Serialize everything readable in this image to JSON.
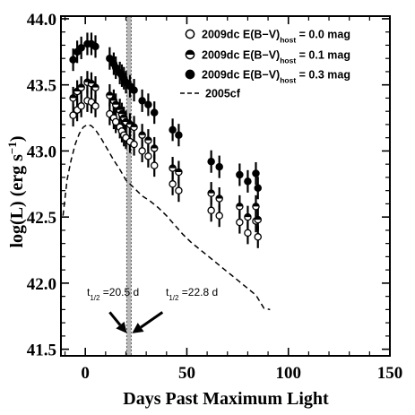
{
  "chart_data": {
    "type": "scatter",
    "xlabel": "Days Past Maximum Light",
    "ylabel_main": "log(L) (erg s",
    "ylabel_sup": "−1",
    "ylabel_close": ")",
    "xlim": [
      -12,
      150
    ],
    "ylim": [
      41.45,
      44.02
    ],
    "xticks": [
      0,
      50,
      100,
      150
    ],
    "yticks": [
      41.5,
      42.0,
      42.5,
      43.0,
      43.5,
      44.0
    ],
    "ytick_labels": [
      "41.5",
      "42.0",
      "42.5",
      "43.0",
      "43.5",
      "44.0"
    ],
    "vertical_band_x": 21.5,
    "series": [
      {
        "name_prefix": "2009dc E(B−V)",
        "name_sub": "host",
        "name_suffix": " = 0.0 mag",
        "marker": "open",
        "points": [
          {
            "x": -6,
            "y": 43.27
          },
          {
            "x": -4,
            "y": 43.31
          },
          {
            "x": -2,
            "y": 43.34
          },
          {
            "x": 1,
            "y": 43.38
          },
          {
            "x": 3,
            "y": 43.37
          },
          {
            "x": 5,
            "y": 43.34
          },
          {
            "x": 12,
            "y": 43.28
          },
          {
            "x": 14,
            "y": 43.25
          },
          {
            "x": 15,
            "y": 43.22
          },
          {
            "x": 17,
            "y": 43.18
          },
          {
            "x": 18,
            "y": 43.15
          },
          {
            "x": 19,
            "y": 43.12
          },
          {
            "x": 20,
            "y": 43.1
          },
          {
            "x": 22,
            "y": 43.07
          },
          {
            "x": 24,
            "y": 43.05
          },
          {
            "x": 28,
            "y": 43.0
          },
          {
            "x": 31,
            "y": 42.96
          },
          {
            "x": 34,
            "y": 42.89
          },
          {
            "x": 43,
            "y": 42.75
          },
          {
            "x": 46,
            "y": 42.7
          },
          {
            "x": 62,
            "y": 42.55
          },
          {
            "x": 66,
            "y": 42.51
          },
          {
            "x": 76,
            "y": 42.46
          },
          {
            "x": 80,
            "y": 42.38
          },
          {
            "x": 84,
            "y": 42.47
          },
          {
            "x": 85,
            "y": 42.35
          }
        ]
      },
      {
        "name_prefix": "2009dc E(B−V)",
        "name_sub": "host",
        "name_suffix": " = 0.1 mag",
        "marker": "half",
        "points": [
          {
            "x": -6,
            "y": 43.4
          },
          {
            "x": -4,
            "y": 43.45
          },
          {
            "x": -2,
            "y": 43.48
          },
          {
            "x": 1,
            "y": 43.52
          },
          {
            "x": 3,
            "y": 43.51
          },
          {
            "x": 5,
            "y": 43.48
          },
          {
            "x": 12,
            "y": 43.42
          },
          {
            "x": 14,
            "y": 43.38
          },
          {
            "x": 15,
            "y": 43.35
          },
          {
            "x": 17,
            "y": 43.31
          },
          {
            "x": 18,
            "y": 43.28
          },
          {
            "x": 19,
            "y": 43.25
          },
          {
            "x": 20,
            "y": 43.22
          },
          {
            "x": 22,
            "y": 43.2
          },
          {
            "x": 24,
            "y": 43.18
          },
          {
            "x": 28,
            "y": 43.12
          },
          {
            "x": 31,
            "y": 43.08
          },
          {
            "x": 34,
            "y": 43.02
          },
          {
            "x": 43,
            "y": 42.87
          },
          {
            "x": 46,
            "y": 42.84
          },
          {
            "x": 62,
            "y": 42.68
          },
          {
            "x": 66,
            "y": 42.64
          },
          {
            "x": 76,
            "y": 42.58
          },
          {
            "x": 80,
            "y": 42.5
          },
          {
            "x": 84,
            "y": 42.58
          },
          {
            "x": 85,
            "y": 42.48
          }
        ]
      },
      {
        "name_prefix": "2009dc E(B−V)",
        "name_sub": "host",
        "name_suffix": " = 0.3 mag",
        "marker": "filled",
        "points": [
          {
            "x": -6,
            "y": 43.69
          },
          {
            "x": -4,
            "y": 43.75
          },
          {
            "x": -2,
            "y": 43.78
          },
          {
            "x": 1,
            "y": 43.81
          },
          {
            "x": 3,
            "y": 43.81
          },
          {
            "x": 5,
            "y": 43.79
          },
          {
            "x": 12,
            "y": 43.7
          },
          {
            "x": 14,
            "y": 43.66
          },
          {
            "x": 15,
            "y": 43.63
          },
          {
            "x": 17,
            "y": 43.59
          },
          {
            "x": 18,
            "y": 43.57
          },
          {
            "x": 19,
            "y": 43.55
          },
          {
            "x": 20,
            "y": 43.52
          },
          {
            "x": 22,
            "y": 43.49
          },
          {
            "x": 24,
            "y": 43.46
          },
          {
            "x": 28,
            "y": 43.38
          },
          {
            "x": 31,
            "y": 43.35
          },
          {
            "x": 34,
            "y": 43.29
          },
          {
            "x": 43,
            "y": 43.16
          },
          {
            "x": 46,
            "y": 43.12
          },
          {
            "x": 62,
            "y": 42.92
          },
          {
            "x": 66,
            "y": 42.88
          },
          {
            "x": 76,
            "y": 42.82
          },
          {
            "x": 80,
            "y": 42.77
          },
          {
            "x": 84,
            "y": 42.83
          },
          {
            "x": 85,
            "y": 42.72
          }
        ]
      },
      {
        "name": "2005cf",
        "style": "dashed-line",
        "points": [
          {
            "x": -11,
            "y": 42.51
          },
          {
            "x": -9,
            "y": 42.78
          },
          {
            "x": -7,
            "y": 42.93
          },
          {
            "x": -5,
            "y": 43.05
          },
          {
            "x": -3,
            "y": 43.13
          },
          {
            "x": -1,
            "y": 43.18
          },
          {
            "x": 1,
            "y": 43.2
          },
          {
            "x": 3,
            "y": 43.19
          },
          {
            "x": 5,
            "y": 43.16
          },
          {
            "x": 8,
            "y": 43.09
          },
          {
            "x": 11,
            "y": 43.01
          },
          {
            "x": 14,
            "y": 42.93
          },
          {
            "x": 17,
            "y": 42.86
          },
          {
            "x": 20,
            "y": 42.78
          },
          {
            "x": 24,
            "y": 42.72
          },
          {
            "x": 28,
            "y": 42.66
          },
          {
            "x": 32,
            "y": 42.62
          },
          {
            "x": 36,
            "y": 42.57
          },
          {
            "x": 40,
            "y": 42.51
          },
          {
            "x": 44,
            "y": 42.44
          },
          {
            "x": 48,
            "y": 42.37
          },
          {
            "x": 52,
            "y": 42.31
          },
          {
            "x": 56,
            "y": 42.26
          },
          {
            "x": 60,
            "y": 42.21
          },
          {
            "x": 64,
            "y": 42.16
          },
          {
            "x": 68,
            "y": 42.11
          },
          {
            "x": 72,
            "y": 42.06
          },
          {
            "x": 76,
            "y": 42.01
          },
          {
            "x": 80,
            "y": 41.96
          },
          {
            "x": 84,
            "y": 41.91
          },
          {
            "x": 88,
            "y": 41.81
          },
          {
            "x": 91,
            "y": 41.8
          }
        ]
      }
    ],
    "annotations": [
      {
        "symbol": "t",
        "sub": "1/2",
        "rest": " =20.5 d",
        "x": -13,
        "y": 42.03,
        "arrow_from": [
          12,
          41.78
        ],
        "arrow_to": [
          20.5,
          41.62
        ]
      },
      {
        "symbol": "t",
        "sub": "1/2",
        "rest": " =22.8 d",
        "x": 27,
        "y": 42.03,
        "arrow_from": [
          38,
          41.78
        ],
        "arrow_to": [
          23,
          41.62
        ]
      }
    ],
    "legend_position": "top-right"
  }
}
